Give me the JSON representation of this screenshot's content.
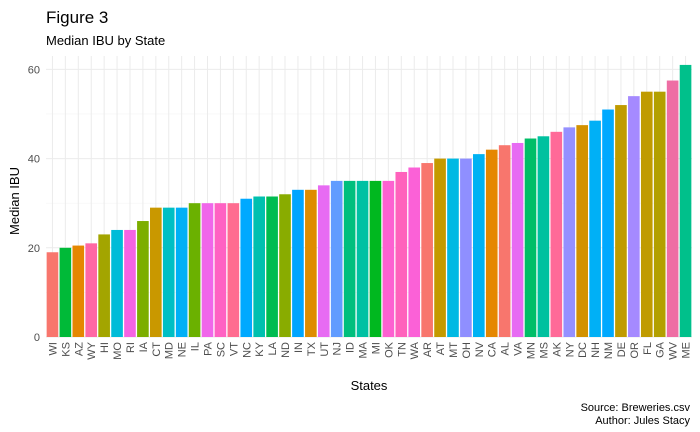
{
  "chart_data": {
    "type": "bar",
    "title": "Figure 3",
    "subtitle": "Median IBU by State",
    "xlabel": "States",
    "ylabel": "Median IBU",
    "caption_lines": [
      "Source: Breweries.csv",
      "Author: Jules Stacy"
    ],
    "ylim": [
      0,
      63
    ],
    "yticks": [
      0,
      20,
      40,
      60
    ],
    "grid": true,
    "legend": "none",
    "categories": [
      "WI",
      "KS",
      "AZ",
      "WY",
      "HI",
      "MO",
      "RI",
      "IA",
      "CT",
      "MD",
      "NE",
      "IL",
      "PA",
      "SC",
      "VT",
      "NC",
      "KY",
      "LA",
      "ND",
      "IN",
      "TX",
      "UT",
      "NJ",
      "ID",
      "MA",
      "MI",
      "OK",
      "TN",
      "WA",
      "AR",
      "AT",
      "MT",
      "OH",
      "NV",
      "CA",
      "AL",
      "VA",
      "MN",
      "MS",
      "AK",
      "NY",
      "DC",
      "NH",
      "NM",
      "DE",
      "OR",
      "FL",
      "GA",
      "WV",
      "ME"
    ],
    "values": [
      19,
      20,
      20.5,
      21,
      23,
      24,
      24,
      26,
      29,
      29,
      29,
      30,
      30,
      30,
      30,
      31,
      31.5,
      31.5,
      32,
      33,
      33,
      34,
      35,
      35,
      35,
      35,
      35,
      37,
      38,
      39,
      40,
      40,
      40,
      41,
      42,
      43,
      43.5,
      44.5,
      45,
      46,
      47,
      47.5,
      48.5,
      51,
      52,
      54,
      55,
      55,
      57.5,
      61
    ],
    "colors": [
      "#F8766D",
      "#00BA38",
      "#E58700",
      "#FF67A4",
      "#A3A500",
      "#00BCD8",
      "#F564E3",
      "#7CAE00",
      "#C99800",
      "#00BFC4",
      "#00B0F6",
      "#6BB100",
      "#F066EA",
      "#FF61C3",
      "#FF6C90",
      "#00A9FF",
      "#00C0AF",
      "#00BC51",
      "#89AC00",
      "#00A5FF",
      "#DE8C00",
      "#E76BF3",
      "#619CFF",
      "#00BF7D",
      "#00C1A3",
      "#00B81F",
      "#FD61D1",
      "#FF62BC",
      "#FB61D7",
      "#F8766D",
      "#C49A00",
      "#00B9E3",
      "#8F8FFF",
      "#00B2F3",
      "#E58700",
      "#F8766D",
      "#E76BF3",
      "#00BE67",
      "#00C19F",
      "#FF6A98",
      "#9590FF",
      "#D39200",
      "#00B0F6",
      "#00A9FF",
      "#C09B00",
      "#A58AFF",
      "#C09B00",
      "#B3A000",
      "#EE6EA4",
      "#00C08B"
    ]
  }
}
